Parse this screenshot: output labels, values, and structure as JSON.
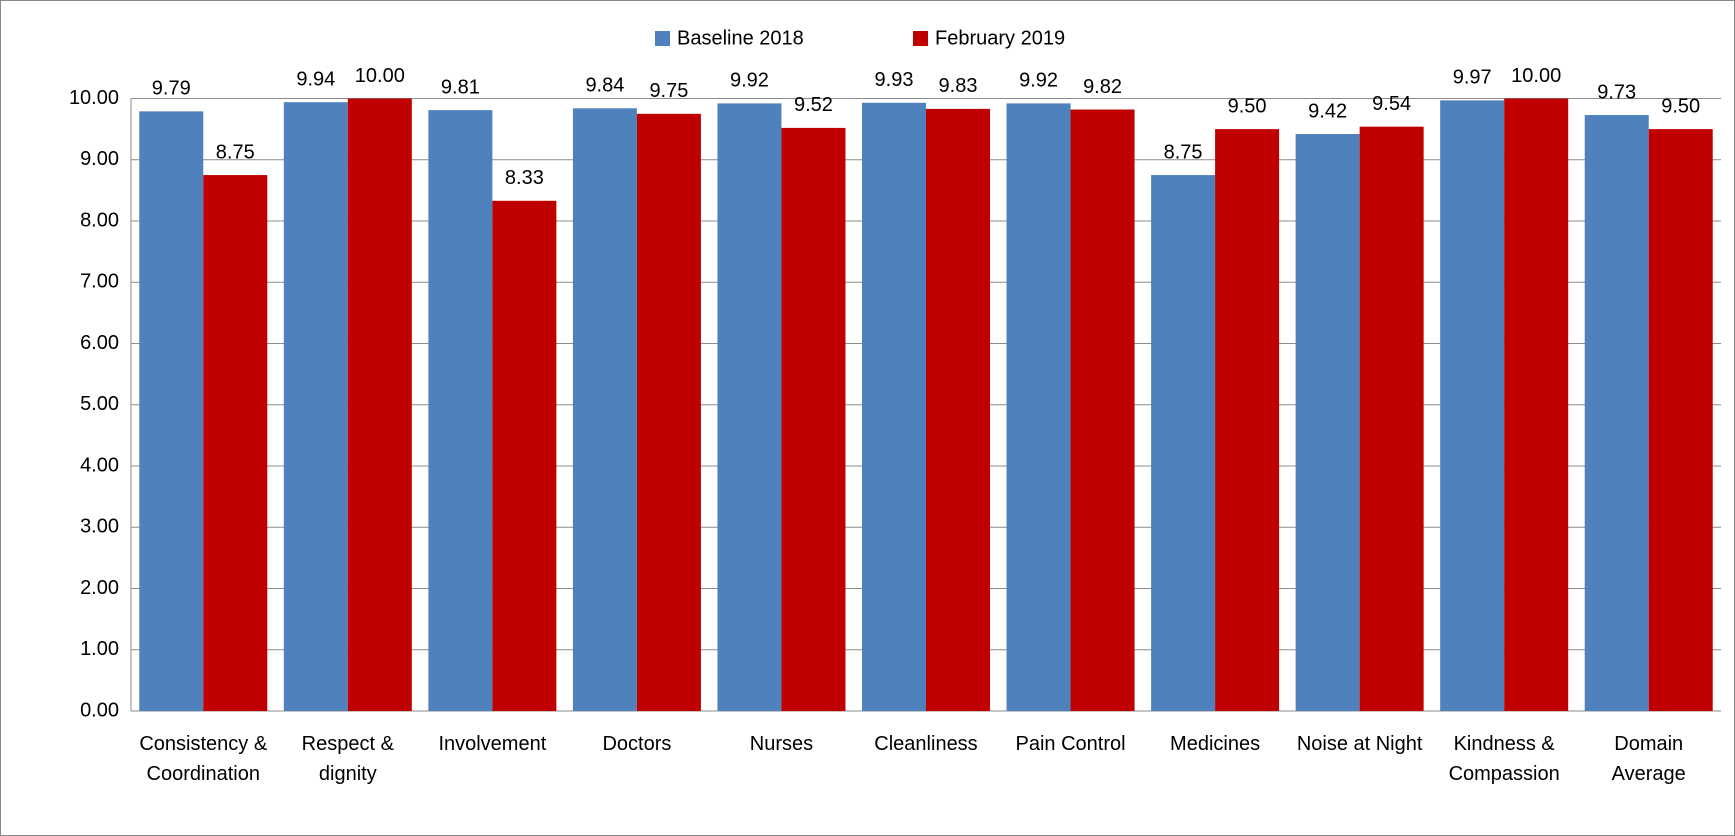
{
  "chart_data": {
    "type": "bar",
    "categories": [
      "Consistency & Coordination",
      "Respect & dignity",
      "Involvement",
      "Doctors",
      "Nurses",
      "Cleanliness",
      "Pain Control",
      "Medicines",
      "Noise at Night",
      "Kindness & Compassion",
      "Domain Average"
    ],
    "series": [
      {
        "name": "Baseline 2018",
        "color": "#4f81bd",
        "values": [
          9.79,
          9.94,
          9.81,
          9.84,
          9.92,
          9.93,
          9.92,
          8.75,
          9.42,
          9.97,
          9.73
        ],
        "value_labels": [
          "9.79",
          "9.94",
          "9.81",
          "9.84",
          "9.92",
          "9.93",
          "9.92",
          "8.75",
          "9.42",
          "9.97",
          "9.73"
        ]
      },
      {
        "name": "February 2019",
        "color": "#c00000",
        "values": [
          8.75,
          10.0,
          8.33,
          9.75,
          9.52,
          9.83,
          9.82,
          9.5,
          9.54,
          10.0,
          9.5
        ],
        "value_labels": [
          "8.75",
          "10.00",
          "8.33",
          "9.75",
          "9.52",
          "9.83",
          "9.82",
          "9.50",
          "9.54",
          "10.00",
          "9.50"
        ]
      }
    ],
    "ylim": [
      0,
      10
    ],
    "yticks": [
      {
        "value": 0,
        "label": "0.00"
      },
      {
        "value": 1,
        "label": "1.00"
      },
      {
        "value": 2,
        "label": "2.00"
      },
      {
        "value": 3,
        "label": "3.00"
      },
      {
        "value": 4,
        "label": "4.00"
      },
      {
        "value": 5,
        "label": "5.00"
      },
      {
        "value": 6,
        "label": "6.00"
      },
      {
        "value": 7,
        "label": "7.00"
      },
      {
        "value": 8,
        "label": "8.00"
      },
      {
        "value": 9,
        "label": "9.00"
      },
      {
        "value": 10,
        "label": "10.00"
      }
    ],
    "grid": true,
    "legend": "top"
  }
}
